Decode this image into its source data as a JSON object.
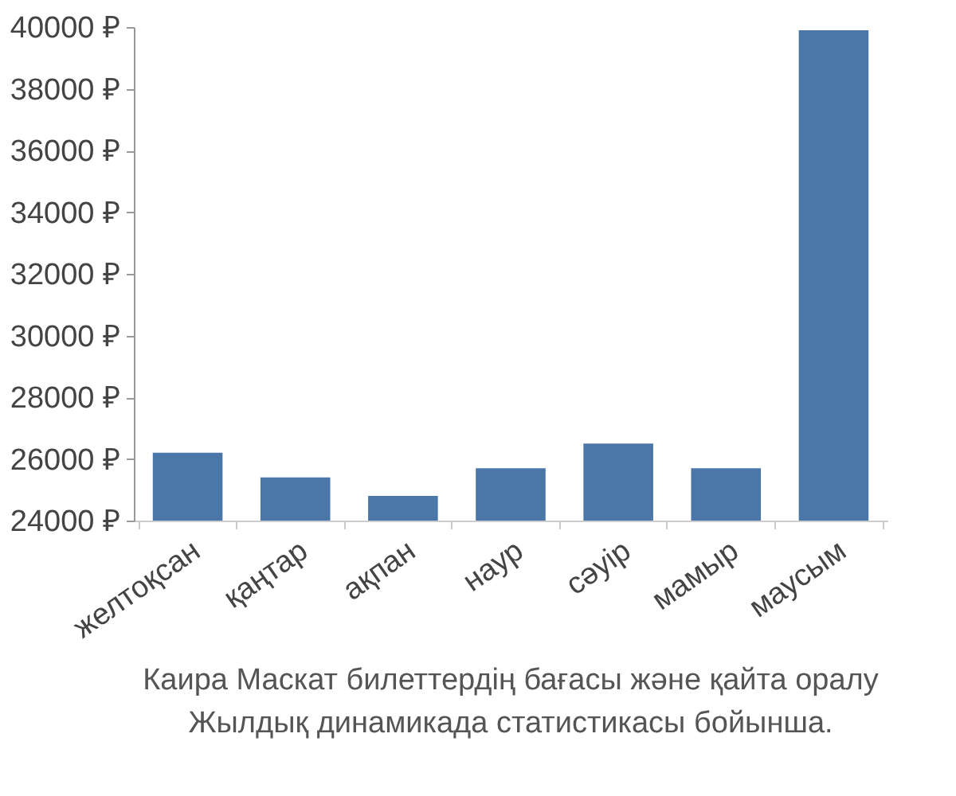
{
  "chart_data": {
    "type": "bar",
    "categories": [
      "желтоқсан",
      "қаңтар",
      "ақпан",
      "наур",
      "сәуір",
      "мамыр",
      "маусым"
    ],
    "values": [
      26200,
      25400,
      24800,
      25700,
      26500,
      25700,
      39900
    ],
    "color": "#4a76a8",
    "ylim": [
      24000,
      40000
    ],
    "yticks": [
      {
        "value": 24000,
        "label": "24000 ₽"
      },
      {
        "value": 26000,
        "label": "26000 ₽"
      },
      {
        "value": 28000,
        "label": "28000 ₽"
      },
      {
        "value": 30000,
        "label": "30000 ₽"
      },
      {
        "value": 32000,
        "label": "32000 ₽"
      },
      {
        "value": 34000,
        "label": "34000 ₽"
      },
      {
        "value": 36000,
        "label": "36000 ₽"
      },
      {
        "value": 38000,
        "label": "38000 ₽"
      },
      {
        "value": 40000,
        "label": "40000 ₽"
      }
    ],
    "grid": false,
    "annotations": [
      "Каира Маскат билеттердің бағасы және қайта оралу",
      "Жылдық динамикада статистикасы бойынша."
    ]
  }
}
